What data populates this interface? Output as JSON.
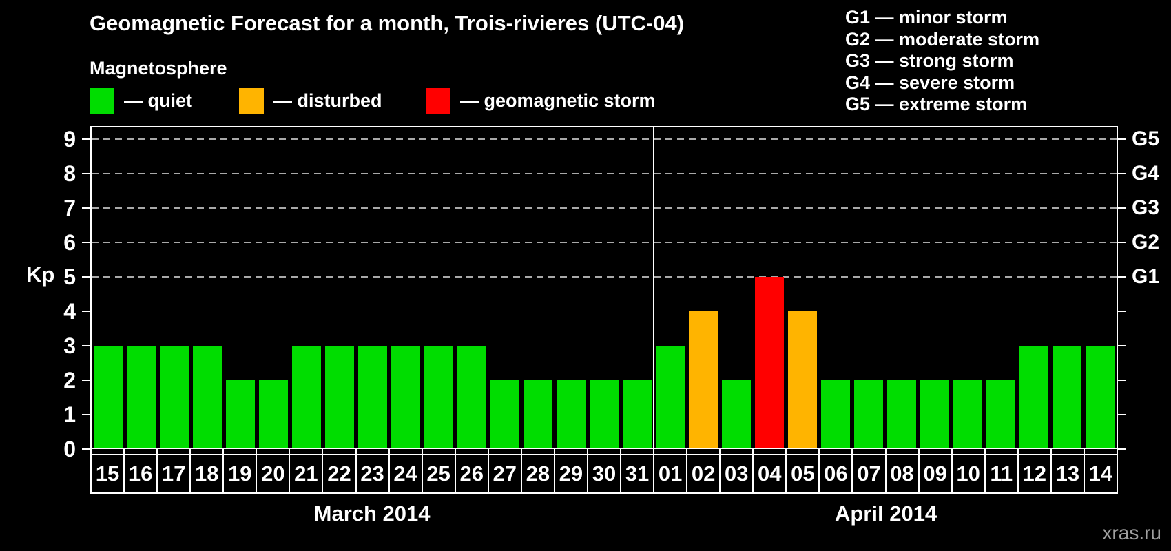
{
  "header": {
    "title": "Geomagnetic Forecast for a month, Trois-rivieres (UTC-04)",
    "subtitle": "Magnetosphere",
    "legend": [
      {
        "status": "quiet",
        "label": "— quiet",
        "color": "#00dd00"
      },
      {
        "status": "disturbed",
        "label": "— disturbed",
        "color": "#ffb400"
      },
      {
        "status": "storm",
        "label": "— geomagnetic storm",
        "color": "#ff0000"
      }
    ],
    "g_legend": [
      "G1 — minor storm",
      "G2 — moderate storm",
      "G3 — strong storm",
      "G4 — severe storm",
      "G5 — extreme storm"
    ]
  },
  "chart_data": {
    "type": "bar",
    "title": "Geomagnetic Forecast for a month, Trois-rivieres (UTC-04)",
    "ylabel": "Kp",
    "ylim": [
      0,
      9.4
    ],
    "yticks": [
      0,
      1,
      2,
      3,
      4,
      5,
      6,
      7,
      8,
      9
    ],
    "grid_levels": [
      5,
      6,
      7,
      8,
      9
    ],
    "grid_style": "dashed",
    "right_axis_labels": [
      {
        "level": 5,
        "label": "G1"
      },
      {
        "level": 6,
        "label": "G2"
      },
      {
        "level": 7,
        "label": "G3"
      },
      {
        "level": 8,
        "label": "G4"
      },
      {
        "level": 9,
        "label": "G5"
      }
    ],
    "categories": [
      "15",
      "16",
      "17",
      "18",
      "19",
      "20",
      "21",
      "22",
      "23",
      "24",
      "25",
      "26",
      "27",
      "28",
      "29",
      "30",
      "31",
      "01",
      "02",
      "03",
      "04",
      "05",
      "06",
      "07",
      "08",
      "09",
      "10",
      "11",
      "12",
      "13",
      "14"
    ],
    "values": [
      3,
      3,
      3,
      3,
      2,
      2,
      3,
      3,
      3,
      3,
      3,
      3,
      2,
      2,
      2,
      2,
      2,
      3,
      4,
      2,
      5,
      4,
      2,
      2,
      2,
      2,
      2,
      2,
      3,
      3,
      3
    ],
    "statuses": [
      "quiet",
      "quiet",
      "quiet",
      "quiet",
      "quiet",
      "quiet",
      "quiet",
      "quiet",
      "quiet",
      "quiet",
      "quiet",
      "quiet",
      "quiet",
      "quiet",
      "quiet",
      "quiet",
      "quiet",
      "quiet",
      "disturbed",
      "quiet",
      "storm",
      "disturbed",
      "quiet",
      "quiet",
      "quiet",
      "quiet",
      "quiet",
      "quiet",
      "quiet",
      "quiet",
      "quiet"
    ],
    "status_colors": {
      "quiet": "#00dd00",
      "disturbed": "#ffb400",
      "storm": "#ff0000"
    },
    "month_groups": [
      {
        "label": "March 2014",
        "count": 17
      },
      {
        "label": "April 2014",
        "count": 14
      }
    ],
    "legend_position": "top-left",
    "grid_color": "#a9a9a9"
  },
  "watermark": "xras.ru",
  "colors": {
    "background": "#000000",
    "axis": "#ffffff",
    "text": "#ffffff",
    "watermark": "#a0a0a0"
  }
}
